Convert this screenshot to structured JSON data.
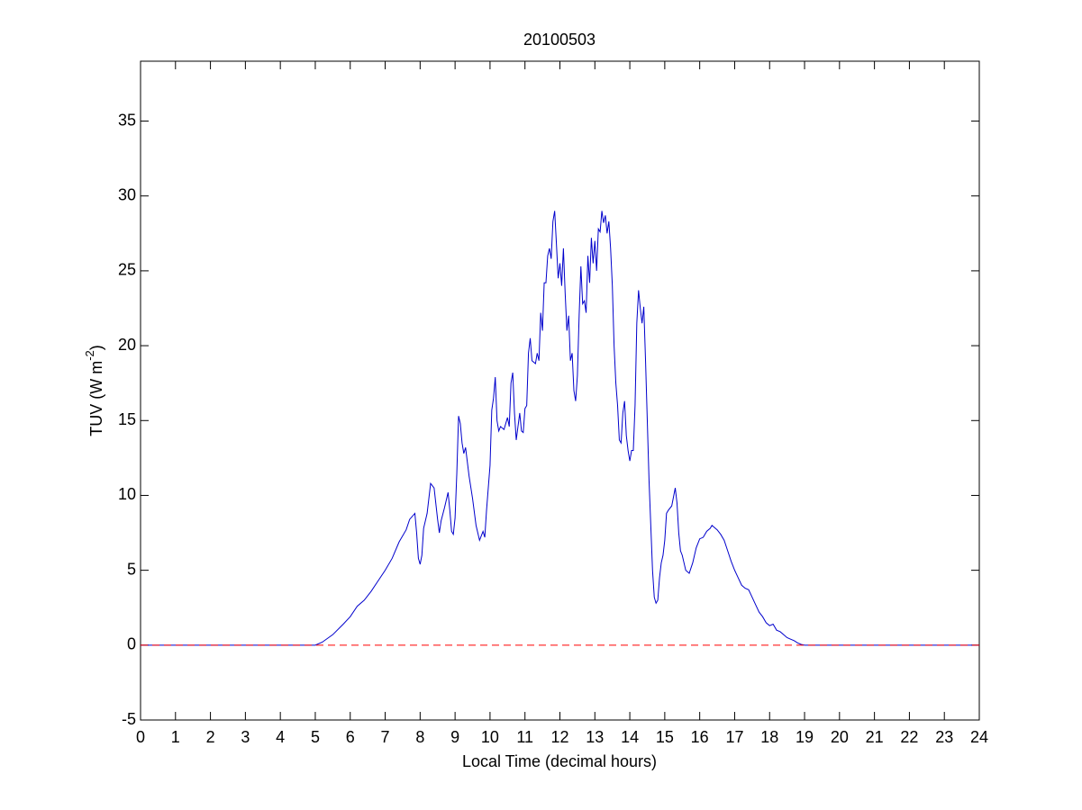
{
  "chart_data": {
    "type": "line",
    "title": "20100503",
    "xlabel": "Local Time (decimal hours)",
    "ylabel": {
      "text": "TUV (W m",
      "superscript": "-2",
      "suffix": ")"
    },
    "x": [
      0,
      5.0,
      5.2,
      5.5,
      5.8,
      6.0,
      6.2,
      6.4,
      6.6,
      6.8,
      7.0,
      7.2,
      7.4,
      7.6,
      7.7,
      7.85,
      7.9,
      7.95,
      8.0,
      8.05,
      8.1,
      8.2,
      8.3,
      8.4,
      8.5,
      8.55,
      8.6,
      8.7,
      8.8,
      8.85,
      8.9,
      8.95,
      9.0,
      9.05,
      9.1,
      9.15,
      9.2,
      9.25,
      9.3,
      9.4,
      9.5,
      9.6,
      9.7,
      9.8,
      9.85,
      9.9,
      10.0,
      10.05,
      10.1,
      10.15,
      10.2,
      10.25,
      10.3,
      10.4,
      10.5,
      10.55,
      10.6,
      10.65,
      10.7,
      10.75,
      10.8,
      10.85,
      10.9,
      10.95,
      11.0,
      11.05,
      11.1,
      11.15,
      11.2,
      11.3,
      11.35,
      11.4,
      11.45,
      11.5,
      11.55,
      11.6,
      11.65,
      11.7,
      11.75,
      11.8,
      11.85,
      11.9,
      11.95,
      12.0,
      12.05,
      12.1,
      12.15,
      12.2,
      12.25,
      12.3,
      12.35,
      12.4,
      12.45,
      12.5,
      12.55,
      12.6,
      12.65,
      12.7,
      12.75,
      12.8,
      12.85,
      12.9,
      12.95,
      13.0,
      13.05,
      13.1,
      13.15,
      13.2,
      13.25,
      13.3,
      13.35,
      13.4,
      13.45,
      13.5,
      13.55,
      13.6,
      13.65,
      13.7,
      13.75,
      13.8,
      13.85,
      13.9,
      13.95,
      14.0,
      14.05,
      14.1,
      14.15,
      14.2,
      14.25,
      14.3,
      14.35,
      14.4,
      14.45,
      14.5,
      14.55,
      14.6,
      14.65,
      14.7,
      14.75,
      14.8,
      14.85,
      14.9,
      14.95,
      15.0,
      15.05,
      15.1,
      15.2,
      15.3,
      15.35,
      15.4,
      15.45,
      15.5,
      15.55,
      15.6,
      15.7,
      15.8,
      15.9,
      16.0,
      16.1,
      16.2,
      16.3,
      16.35,
      16.5,
      16.6,
      16.7,
      16.8,
      16.9,
      17.0,
      17.1,
      17.2,
      17.3,
      17.4,
      17.5,
      17.6,
      17.7,
      17.8,
      17.9,
      18.0,
      18.1,
      18.2,
      18.3,
      18.4,
      18.5,
      18.6,
      18.7,
      18.8,
      18.9,
      19.0,
      24
    ],
    "series": [
      {
        "color": "#0000cc",
        "values": [
          0,
          0,
          0.2,
          0.7,
          1.4,
          1.9,
          2.6,
          3.0,
          3.6,
          4.3,
          5.0,
          5.8,
          6.9,
          7.7,
          8.4,
          8.8,
          7.5,
          5.8,
          5.4,
          6.0,
          7.8,
          8.8,
          10.8,
          10.5,
          8.4,
          7.5,
          8.3,
          9.2,
          10.2,
          9.0,
          7.6,
          7.4,
          8.5,
          11.5,
          15.3,
          14.8,
          13.5,
          12.8,
          13.2,
          11.3,
          9.8,
          8.0,
          7.0,
          7.6,
          7.2,
          9.0,
          12.0,
          15.7,
          16.5,
          17.9,
          15.0,
          14.3,
          14.6,
          14.4,
          15.2,
          14.6,
          17.5,
          18.2,
          15.5,
          13.7,
          14.6,
          15.5,
          14.3,
          14.2,
          15.8,
          16.0,
          19.5,
          20.5,
          19.0,
          18.8,
          19.5,
          19.0,
          22.2,
          21.0,
          24.2,
          24.2,
          26.0,
          26.5,
          25.8,
          28.3,
          29.0,
          26.8,
          24.5,
          25.5,
          24.0,
          26.5,
          23.5,
          21.0,
          22.0,
          19.0,
          19.5,
          17.0,
          16.3,
          18.0,
          22.0,
          25.3,
          22.8,
          23.0,
          22.2,
          26.0,
          24.2,
          27.2,
          25.5,
          27.0,
          25.0,
          27.8,
          27.6,
          29.0,
          28.2,
          28.7,
          27.5,
          28.3,
          26.5,
          24.0,
          20.0,
          17.5,
          16.0,
          13.7,
          13.5,
          15.5,
          16.3,
          14.0,
          13.0,
          12.3,
          13.0,
          13.0,
          16.0,
          21.5,
          23.7,
          22.5,
          21.5,
          22.6,
          19.0,
          15.0,
          11.0,
          8.0,
          5.0,
          3.2,
          2.8,
          3.0,
          4.5,
          5.5,
          6.0,
          7.0,
          8.8,
          9.0,
          9.3,
          10.5,
          9.5,
          7.5,
          6.3,
          6.0,
          5.5,
          5.0,
          4.8,
          5.5,
          6.5,
          7.1,
          7.2,
          7.6,
          7.8,
          8.0,
          7.7,
          7.4,
          7.0,
          6.3,
          5.6,
          5.0,
          4.5,
          4.0,
          3.8,
          3.7,
          3.2,
          2.7,
          2.2,
          1.9,
          1.5,
          1.3,
          1.4,
          1.0,
          0.9,
          0.7,
          0.5,
          0.4,
          0.3,
          0.15,
          0.05,
          0,
          0
        ]
      }
    ],
    "reference_line": {
      "value": 0,
      "color": "#ff0000",
      "style": "dashed"
    },
    "xlim": [
      0,
      24
    ],
    "xticks": [
      0,
      1,
      2,
      3,
      4,
      5,
      6,
      7,
      8,
      9,
      10,
      11,
      12,
      13,
      14,
      15,
      16,
      17,
      18,
      19,
      20,
      21,
      22,
      23,
      24
    ],
    "ylim": [
      -5,
      39
    ],
    "yticks": [
      -5,
      0,
      5,
      10,
      15,
      20,
      25,
      30,
      35
    ],
    "grid": false
  }
}
